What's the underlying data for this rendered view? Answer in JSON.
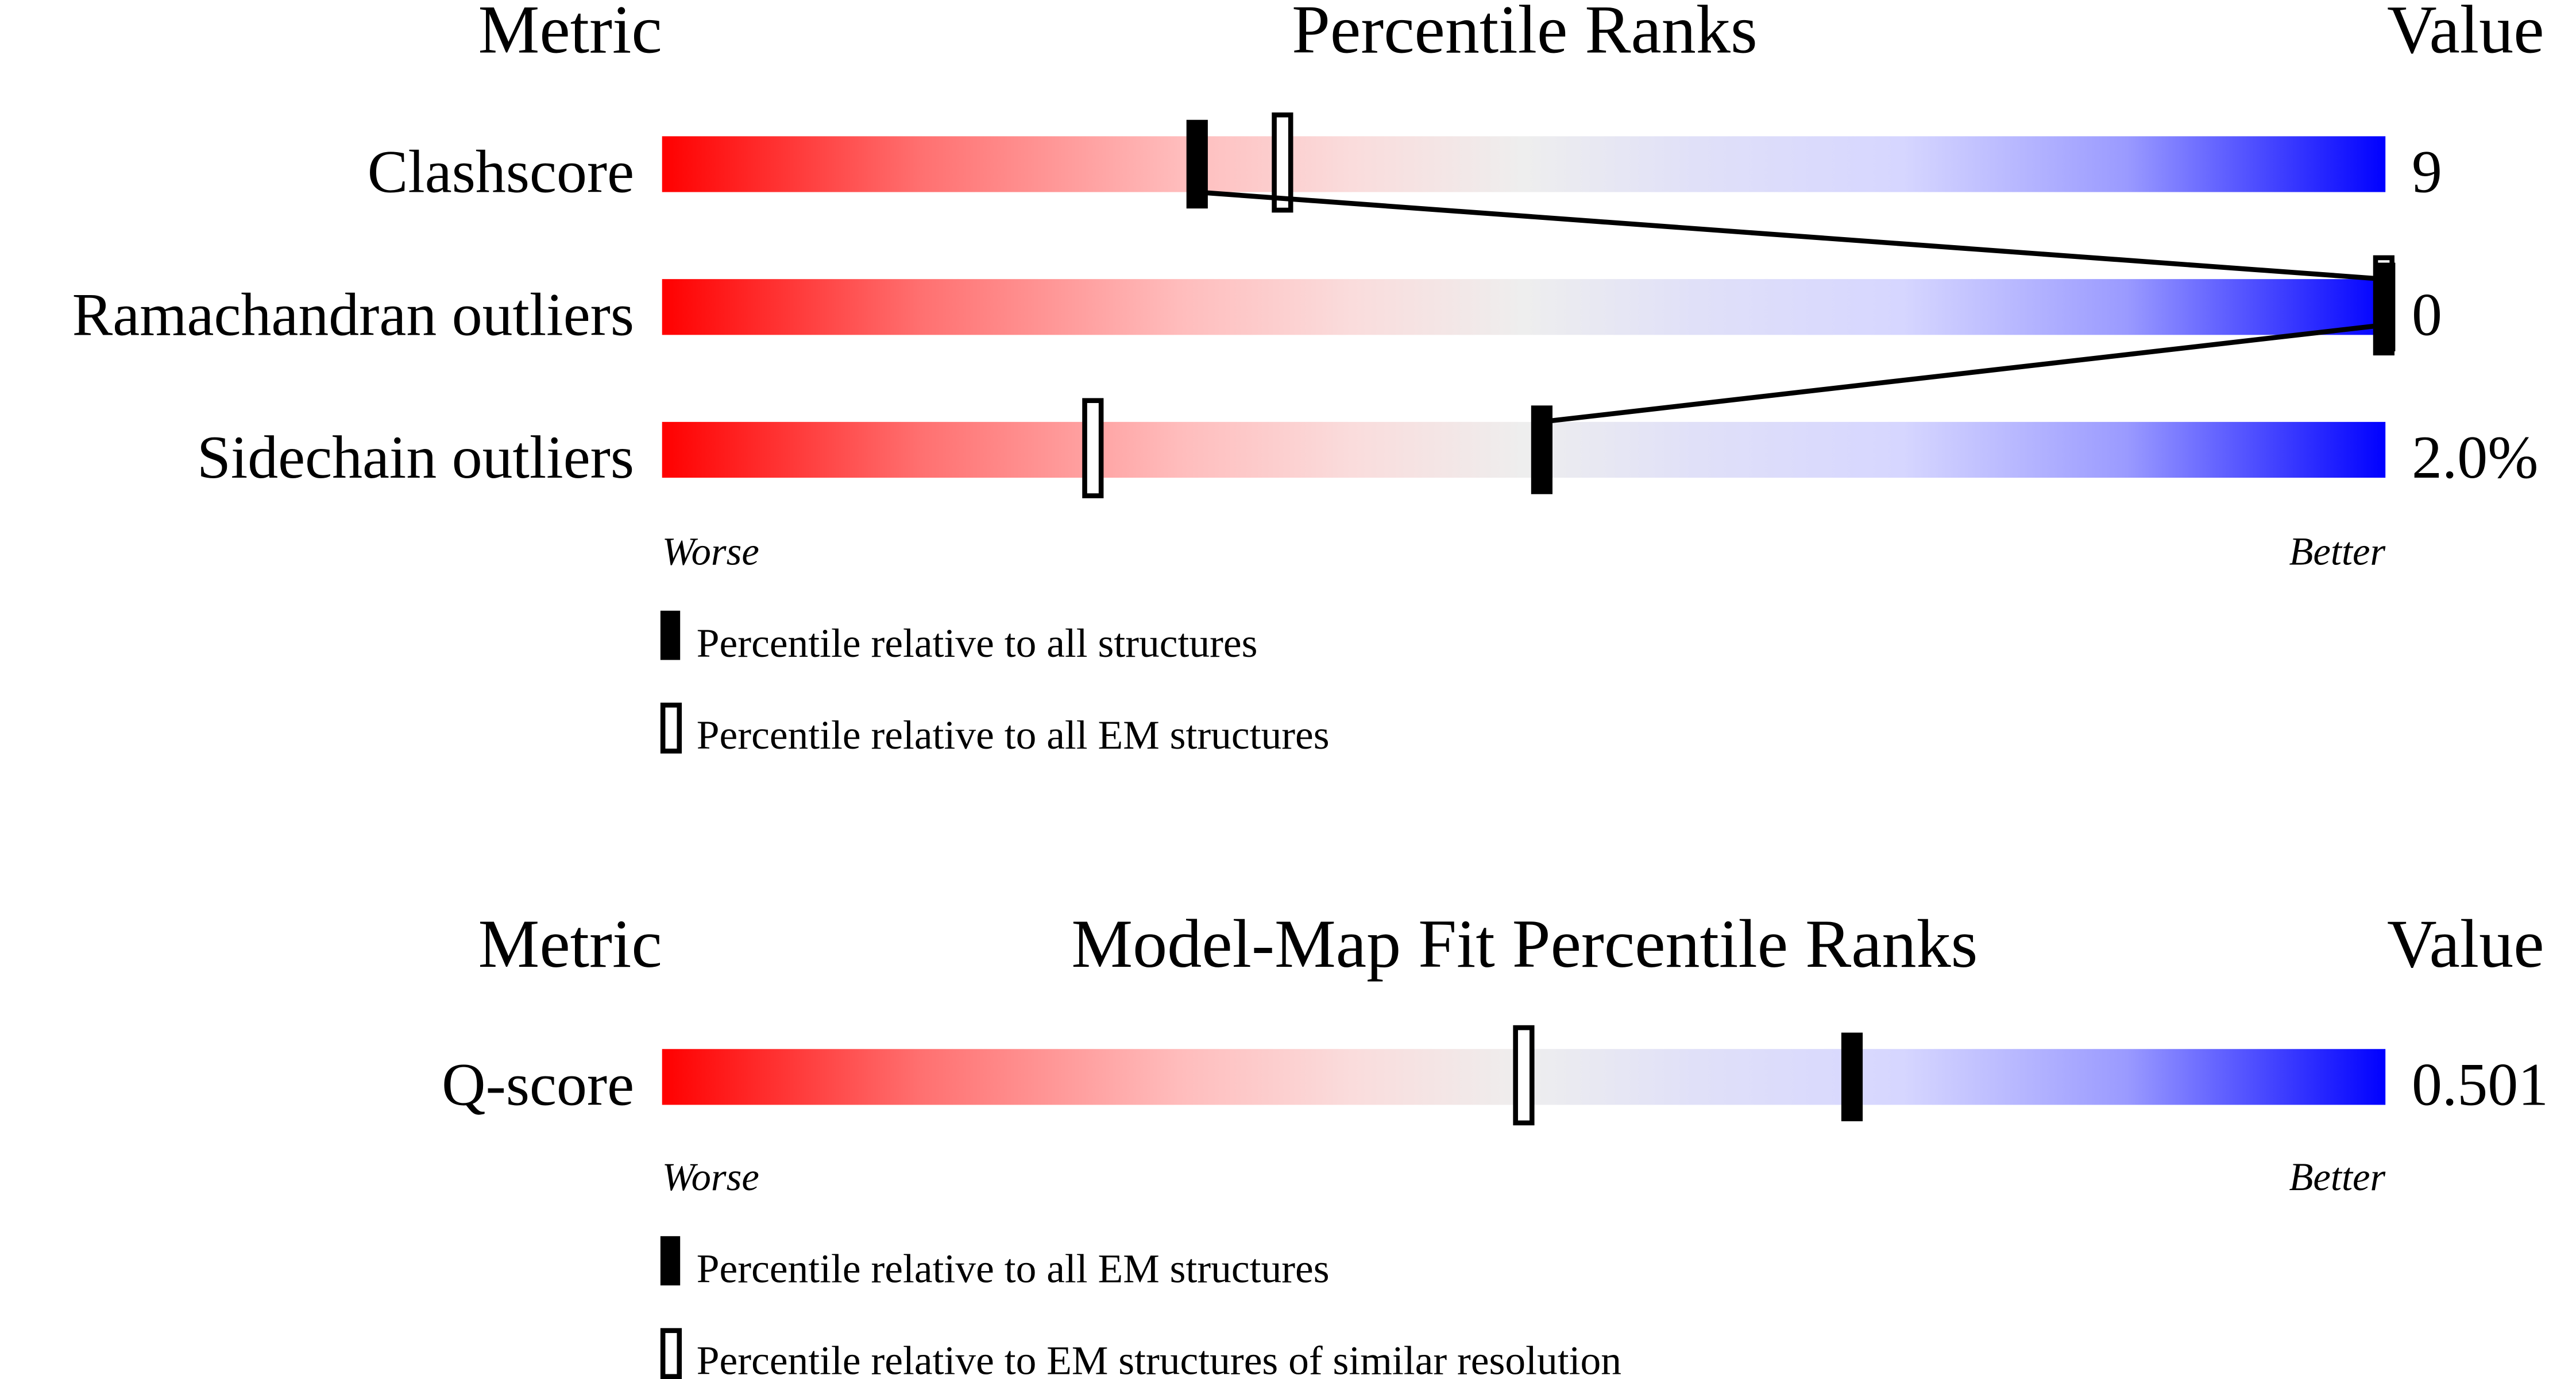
{
  "chart_data": [
    {
      "type": "percentile-bar",
      "headers": {
        "metric": "Metric",
        "title": "Percentile Ranks",
        "value": "Value"
      },
      "axis": {
        "worse": "Worse",
        "better": "Better",
        "range": [
          0,
          100
        ]
      },
      "metrics": [
        {
          "name": "Clashscore",
          "value": "9",
          "percentile_all": 31,
          "percentile_secondary": 36
        },
        {
          "name": "Ramachandran outliers",
          "value": "0",
          "percentile_all": 100,
          "percentile_secondary": 100
        },
        {
          "name": "Sidechain outliers",
          "value": "2.0%",
          "percentile_all": 51,
          "percentile_secondary": 25
        }
      ],
      "connect_all_markers": true,
      "legend": {
        "filled": "Percentile relative to all structures",
        "open": "Percentile relative to all EM structures"
      }
    },
    {
      "type": "percentile-bar",
      "headers": {
        "metric": "Metric",
        "title": "Model-Map Fit Percentile Ranks",
        "value": "Value"
      },
      "axis": {
        "worse": "Worse",
        "better": "Better",
        "range": [
          0,
          100
        ]
      },
      "metrics": [
        {
          "name": "Q-score",
          "value": "0.501",
          "percentile_all": 69,
          "percentile_secondary": 50
        }
      ],
      "connect_all_markers": false,
      "legend": {
        "filled": "Percentile relative to all EM structures",
        "open": "Percentile relative to EM structures of similar resolution"
      }
    }
  ],
  "colors": {
    "worse": "#ff0000",
    "middle": "#eeeeee",
    "better": "#0000ff",
    "marker": "#000000"
  }
}
